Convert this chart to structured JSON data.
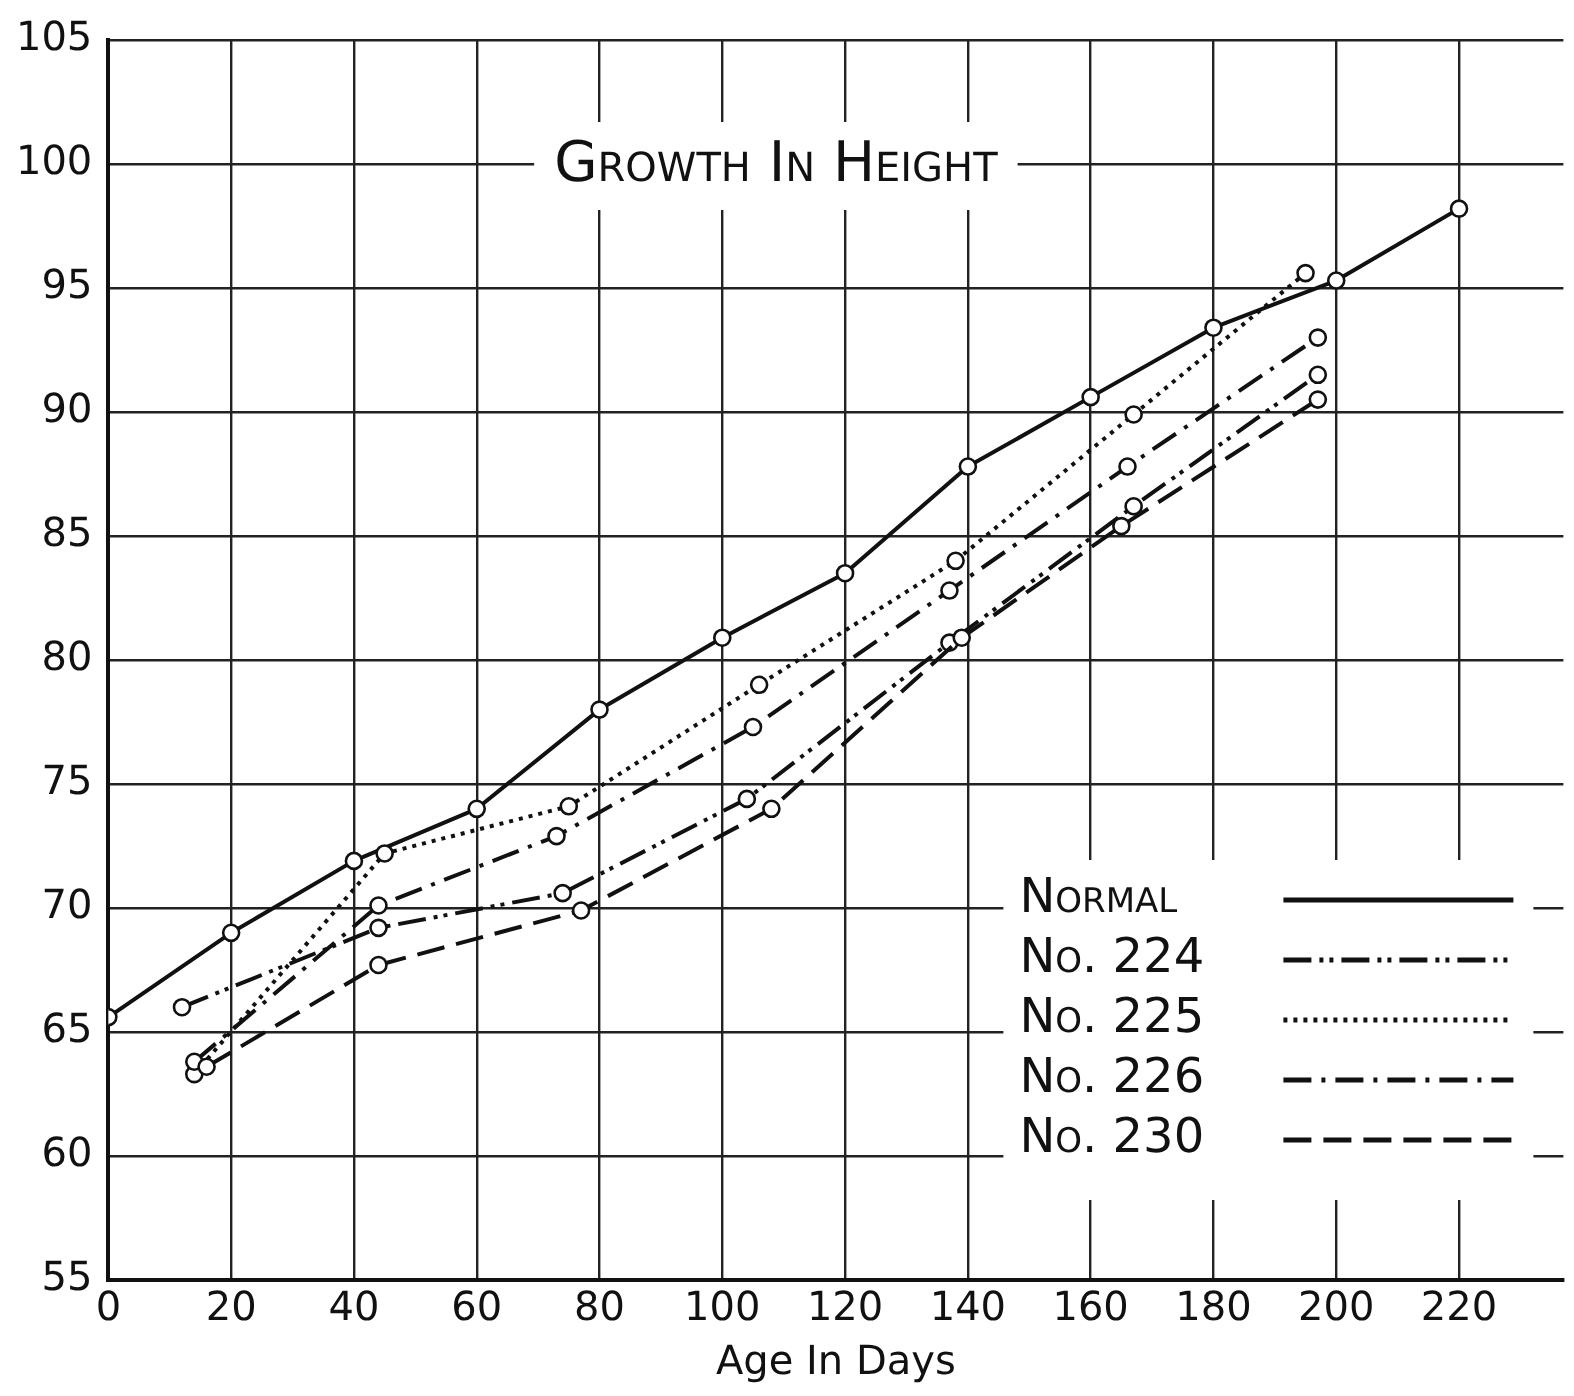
{
  "chart_data": {
    "type": "line",
    "title": "Growth In Height",
    "xlabel": "Age In Days",
    "xlim": [
      0,
      237
    ],
    "xticks": [
      0,
      20,
      40,
      60,
      80,
      100,
      120,
      140,
      160,
      180,
      200,
      220
    ],
    "ylim": [
      55,
      105
    ],
    "yticks": [
      55,
      60,
      65,
      70,
      75,
      80,
      85,
      90,
      95,
      100,
      105
    ],
    "grid": true,
    "legend": "bottom right",
    "marker": "circle",
    "series": [
      {
        "name": "Normal",
        "color": "#111111",
        "line_style": "solid",
        "x": [
          0,
          20,
          40,
          60,
          80,
          100,
          120,
          140,
          160,
          180,
          200,
          220
        ],
        "values": [
          65.6,
          69,
          71.9,
          74,
          78,
          80.9,
          83.5,
          87.8,
          90.6,
          93.4,
          95.3,
          98.2
        ]
      },
      {
        "name": "No. 224",
        "color": "#111111",
        "line_style": "dashdotdot",
        "x": [
          12,
          44,
          74,
          104,
          137,
          167,
          197
        ],
        "values": [
          66,
          69.2,
          70.6,
          74.4,
          80.7,
          86.2,
          91.5
        ]
      },
      {
        "name": "No. 225",
        "color": "#111111",
        "line_style": "dotted",
        "x": [
          14,
          45,
          75,
          106,
          138,
          167,
          195
        ],
        "values": [
          63.3,
          72.2,
          74.1,
          79,
          84,
          89.9,
          95.6
        ]
      },
      {
        "name": "No. 226",
        "color": "#111111",
        "line_style": "dashdot",
        "x": [
          14,
          44,
          73,
          105,
          137,
          166,
          197
        ],
        "values": [
          63.8,
          70.1,
          72.9,
          77.3,
          82.8,
          87.8,
          93
        ]
      },
      {
        "name": "No. 230",
        "color": "#111111",
        "line_style": "dashed",
        "x": [
          16,
          44,
          77,
          108,
          139,
          165,
          197
        ],
        "values": [
          63.6,
          67.7,
          69.9,
          74,
          80.9,
          85.4,
          90.5
        ]
      }
    ]
  }
}
